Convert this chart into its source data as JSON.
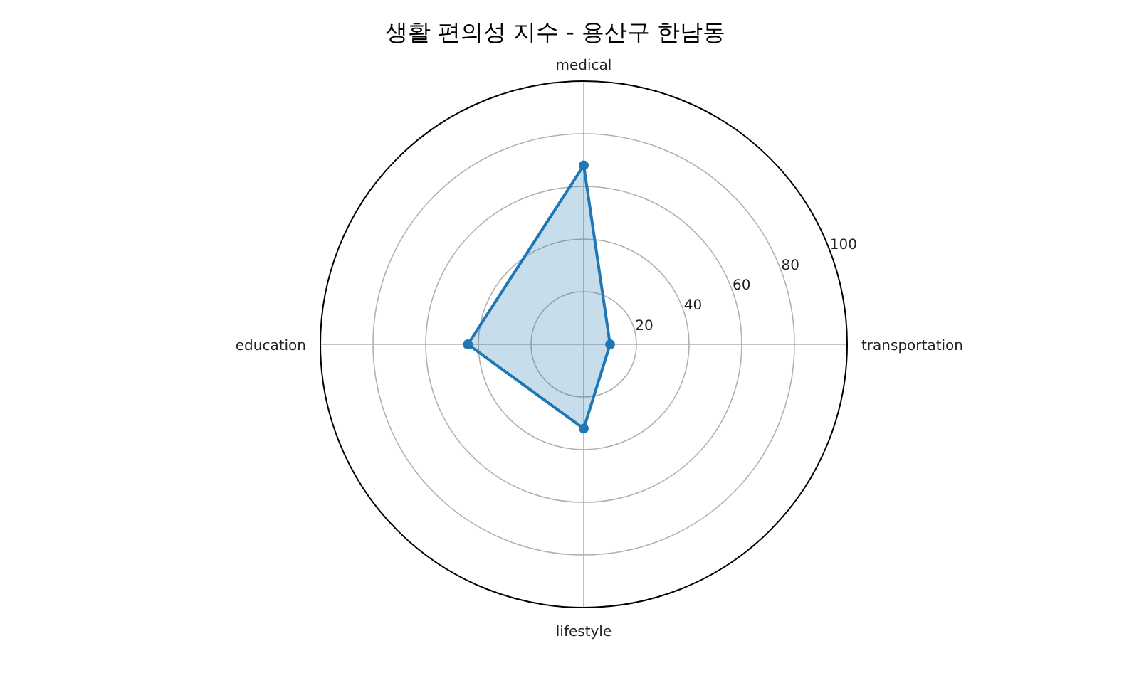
{
  "chart_data": {
    "type": "radar",
    "title": "생활 편의성 지수 - 용산구 한남동",
    "categories": [
      "medical",
      "transportation",
      "lifestyle",
      "education"
    ],
    "series": [
      {
        "color": "#1f77b4",
        "values": [
          68,
          10,
          32,
          44
        ]
      }
    ],
    "ylim": [
      0,
      100
    ],
    "yticks": [
      20,
      40,
      60,
      80,
      100
    ],
    "grid": true,
    "marker": "circle",
    "line_style": "solid"
  }
}
